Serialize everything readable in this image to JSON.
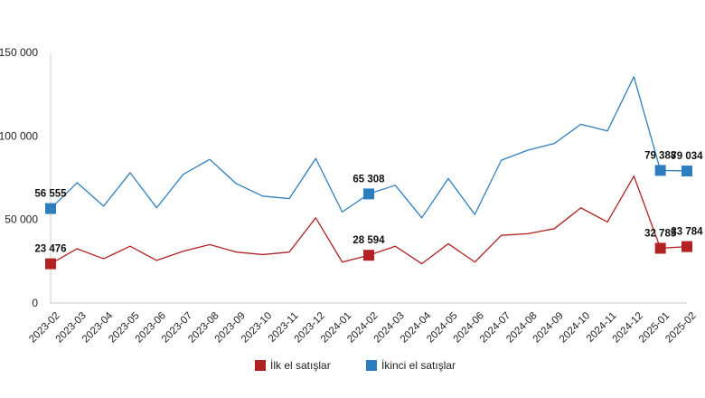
{
  "chart_data": {
    "type": "line",
    "categories": [
      "2023-02",
      "2023-03",
      "2023-04",
      "2023-05",
      "2023-06",
      "2023-07",
      "2023-08",
      "2023-09",
      "2023-10",
      "2023-11",
      "2023-12",
      "2024-01",
      "2024-02",
      "2024-03",
      "2024-04",
      "2024-05",
      "2024-06",
      "2024-07",
      "2024-08",
      "2024-09",
      "2024-10",
      "2024-11",
      "2024-12",
      "2025-01",
      "2025-02"
    ],
    "ylim": [
      0,
      150000
    ],
    "yticks": [
      0,
      50000,
      100000,
      150000
    ],
    "ytick_labels": [
      "0",
      "50 000",
      "100 000",
      "150 000"
    ],
    "grid": false,
    "legend_position": "bottom",
    "series": [
      {
        "name": "İlk el satışlar",
        "color": "#b22222",
        "values": [
          23476,
          32500,
          26500,
          34000,
          25500,
          31000,
          35000,
          30500,
          29000,
          30500,
          51000,
          24500,
          28594,
          34000,
          23500,
          35500,
          24500,
          40500,
          41500,
          44500,
          57000,
          48500,
          76000,
          32785,
          33784
        ],
        "marked": [
          {
            "index": 0,
            "label": "23 476"
          },
          {
            "index": 12,
            "label": "28 594"
          },
          {
            "index": 23,
            "label": "32 785"
          },
          {
            "index": 24,
            "label": "33 784"
          }
        ]
      },
      {
        "name": "İkinci el satışlar",
        "color": "#2e7ebf",
        "values": [
          56555,
          72000,
          58000,
          78000,
          57000,
          77000,
          86000,
          71500,
          64000,
          62500,
          86500,
          54500,
          65308,
          70500,
          51000,
          74500,
          53000,
          85500,
          91500,
          95500,
          107000,
          103000,
          135500,
          79388,
          79034
        ],
        "marked": [
          {
            "index": 0,
            "label": "56 555"
          },
          {
            "index": 12,
            "label": "65 308"
          },
          {
            "index": 23,
            "label": "79 388"
          },
          {
            "index": 24,
            "label": "79 034"
          }
        ]
      }
    ]
  }
}
